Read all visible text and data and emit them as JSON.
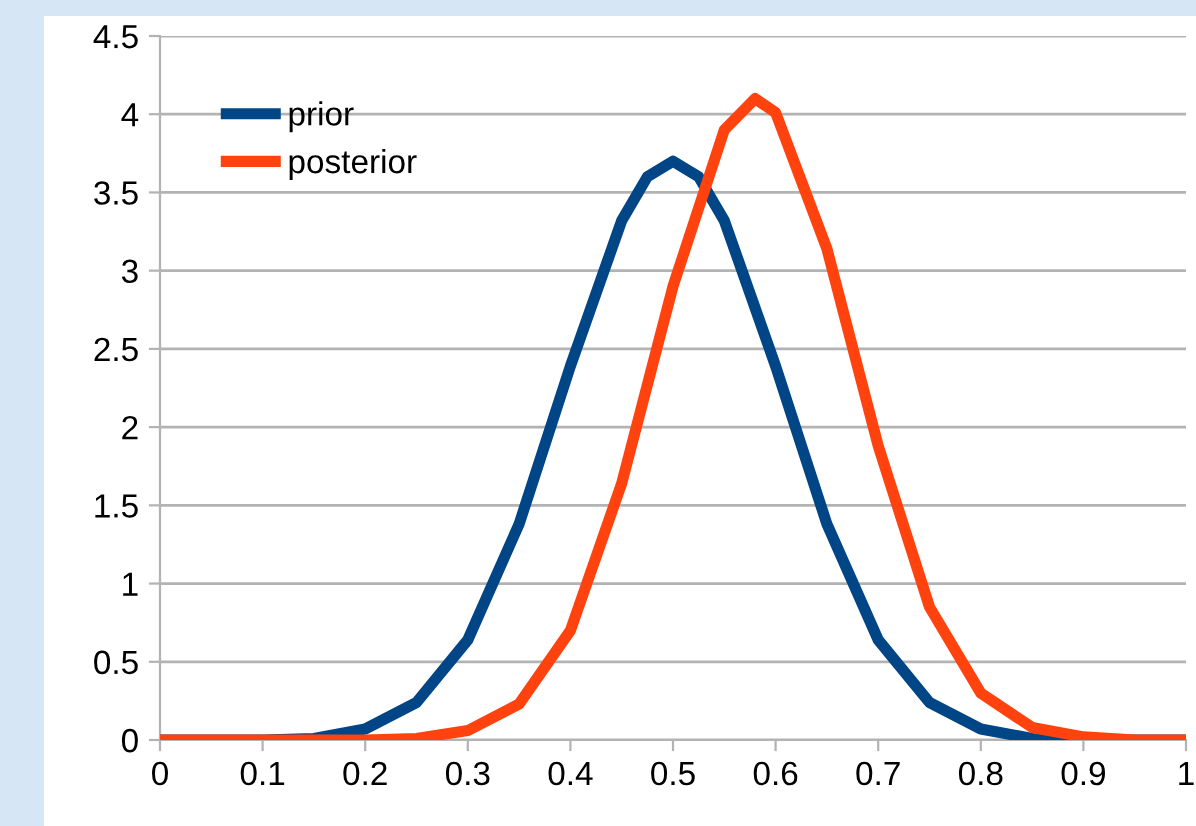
{
  "chart_data": {
    "type": "line",
    "series": [
      {
        "name": "prior",
        "color": "#004586",
        "x": [
          0,
          0.05,
          0.1,
          0.15,
          0.2,
          0.25,
          0.3,
          0.35,
          0.4,
          0.45,
          0.475,
          0.5,
          0.525,
          0.55,
          0.6,
          0.65,
          0.7,
          0.75,
          0.8,
          0.85,
          0.9,
          0.95,
          1
        ],
        "values": [
          0,
          0,
          0,
          0.01,
          0.07,
          0.24,
          0.64,
          1.38,
          2.39,
          3.32,
          3.6,
          3.7,
          3.6,
          3.32,
          2.39,
          1.38,
          0.64,
          0.24,
          0.07,
          0.01,
          0,
          0,
          0
        ]
      },
      {
        "name": "posterior",
        "color": "#ff420e",
        "x": [
          0,
          0.05,
          0.1,
          0.15,
          0.2,
          0.25,
          0.3,
          0.35,
          0.4,
          0.45,
          0.5,
          0.55,
          0.58,
          0.6,
          0.65,
          0.7,
          0.75,
          0.8,
          0.85,
          0.9,
          0.95,
          1
        ],
        "values": [
          0,
          0,
          0,
          0,
          0,
          0.01,
          0.06,
          0.23,
          0.7,
          1.64,
          2.9,
          3.9,
          4.1,
          4.01,
          3.14,
          1.88,
          0.85,
          0.3,
          0.08,
          0.02,
          0,
          0
        ]
      }
    ],
    "xlim": [
      0,
      1
    ],
    "xticks": [
      0,
      0.1,
      0.2,
      0.3,
      0.4,
      0.5,
      0.6,
      0.7,
      0.8,
      0.9,
      1
    ],
    "ylim": [
      0,
      4.5
    ],
    "yticks": [
      0,
      0.5,
      1,
      1.5,
      2,
      2.5,
      3,
      3.5,
      4,
      4.5
    ],
    "grid": "y",
    "legend": "top left",
    "marker": "none",
    "line_style": "solid"
  }
}
